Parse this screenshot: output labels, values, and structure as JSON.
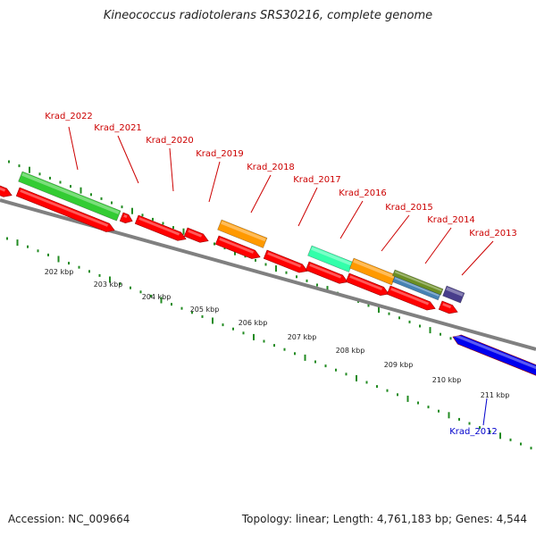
{
  "title": "Kineococcus radiotolerans SRS30216, complete genome",
  "footer": {
    "accession": "Accession: NC_009664",
    "summary": "Topology: linear; Length: 4,761,183 bp; Genes: 4,544"
  },
  "colors": {
    "backbone": "#808080",
    "ticks": "#228b22",
    "cds": "#ff0000",
    "label_forward": "#cc0000",
    "label_reverse": "#0000cc"
  },
  "scale_labels": [
    "202 kbp",
    "203 kbp",
    "204 kbp",
    "205 kbp",
    "206 kbp",
    "207 kbp",
    "208 kbp",
    "209 kbp",
    "210 kbp",
    "211 kbp"
  ],
  "gene_labels": [
    {
      "text": "Krad_2022",
      "color": "#cc0000"
    },
    {
      "text": "Krad_2021",
      "color": "#cc0000"
    },
    {
      "text": "Krad_2020",
      "color": "#cc0000"
    },
    {
      "text": "Krad_2019",
      "color": "#cc0000"
    },
    {
      "text": "Krad_2018",
      "color": "#cc0000"
    },
    {
      "text": "Krad_2017",
      "color": "#cc0000"
    },
    {
      "text": "Krad_2016",
      "color": "#cc0000"
    },
    {
      "text": "Krad_2015",
      "color": "#cc0000"
    },
    {
      "text": "Krad_2014",
      "color": "#cc0000"
    },
    {
      "text": "Krad_2013",
      "color": "#cc0000"
    },
    {
      "text": "Krad_2012",
      "color": "#0000cc"
    }
  ],
  "gene_features": [
    {
      "color": "#33cc33"
    },
    {
      "color": "#ff9900"
    },
    {
      "color": "#33ffaa"
    },
    {
      "color": "#ff9900"
    },
    {
      "color": "#4682b4"
    },
    {
      "color": "#6b8e23"
    },
    {
      "color": "#483d8b"
    }
  ]
}
